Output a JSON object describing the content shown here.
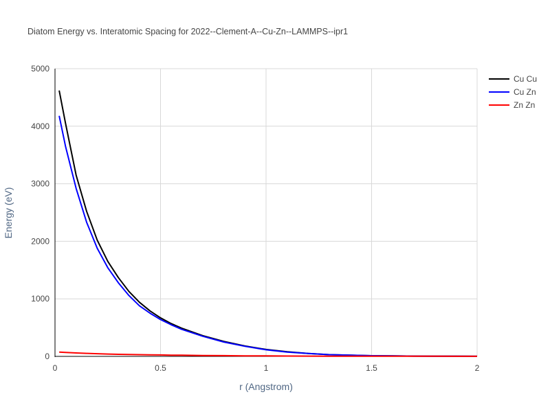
{
  "chart_data": {
    "type": "line",
    "title": "Diatom Energy vs. Interatomic Spacing for 2022--Clement-A--Cu-Zn--LAMMPS--ipr1",
    "xlabel": "r (Angstrom)",
    "ylabel": "Energy (eV)",
    "xlim": [
      0,
      2
    ],
    "ylim": [
      0,
      5000
    ],
    "xticks": [
      0,
      0.5,
      1,
      1.5,
      2
    ],
    "xtick_labels": [
      "0",
      "0.5",
      "1",
      "1.5",
      "2"
    ],
    "yticks": [
      0,
      1000,
      2000,
      3000,
      4000,
      5000
    ],
    "ytick_labels": [
      "0",
      "1000",
      "2000",
      "3000",
      "4000",
      "5000"
    ],
    "grid": true,
    "legend_position": "top-right",
    "x": [
      0.02,
      0.05,
      0.1,
      0.15,
      0.2,
      0.25,
      0.3,
      0.35,
      0.4,
      0.45,
      0.5,
      0.55,
      0.6,
      0.7,
      0.8,
      0.9,
      1.0,
      1.1,
      1.2,
      1.3,
      1.4,
      1.5,
      1.6,
      1.7,
      1.8,
      1.9,
      2.0
    ],
    "series": [
      {
        "name": "Cu Cu",
        "color": "#000000",
        "values": [
          4620,
          4050,
          3150,
          2520,
          2020,
          1650,
          1370,
          1130,
          940,
          790,
          670,
          570,
          490,
          360,
          260,
          180,
          120,
          80,
          50,
          30,
          20,
          12,
          8,
          5,
          3,
          2,
          1
        ]
      },
      {
        "name": "Cu Zn",
        "color": "#0000ff",
        "values": [
          4180,
          3650,
          2920,
          2330,
          1880,
          1540,
          1280,
          1060,
          880,
          750,
          640,
          550,
          470,
          350,
          250,
          175,
          115,
          75,
          50,
          30,
          20,
          12,
          8,
          5,
          3,
          2,
          1
        ]
      },
      {
        "name": "Zn Zn",
        "color": "#ff0000",
        "values": [
          75,
          68,
          60,
          52,
          46,
          40,
          36,
          33,
          30,
          27,
          25,
          22,
          20,
          16,
          13,
          10,
          8,
          6,
          5,
          4,
          3,
          3,
          2,
          2,
          2,
          1,
          1
        ]
      }
    ]
  }
}
